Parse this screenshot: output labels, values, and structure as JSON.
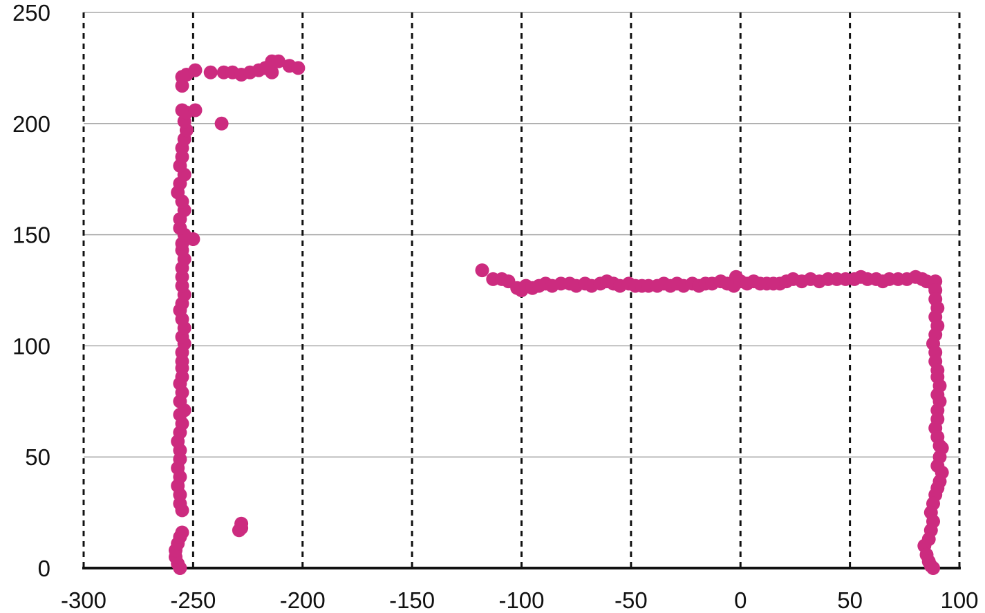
{
  "chart_data": {
    "type": "scatter",
    "title": "",
    "xlabel": "",
    "ylabel": "",
    "xlim": [
      -300,
      100
    ],
    "ylim": [
      0,
      250
    ],
    "x_ticks": [
      -300,
      -250,
      -200,
      -150,
      -100,
      -50,
      0,
      50,
      100
    ],
    "y_ticks": [
      0,
      50,
      100,
      150,
      200,
      250
    ],
    "x_tick_labels": [
      "-300",
      "-250",
      "-200",
      "-150",
      "-100",
      "-50",
      "0",
      "50",
      "100"
    ],
    "y_tick_labels": [
      "0",
      "50",
      "100",
      "150",
      "200",
      "250"
    ],
    "x_grid": "dashed vertical lines",
    "y_grid": "solid gray horizontal lines",
    "legend": "none",
    "marker_color": "#cc2b7f",
    "series": [
      {
        "points": [
          [
            -256,
            0
          ],
          [
            -257,
            2
          ],
          [
            -258,
            5
          ],
          [
            -258,
            8
          ],
          [
            -257,
            11
          ],
          [
            -256,
            14
          ],
          [
            -255,
            16
          ],
          [
            -255,
            26
          ],
          [
            -256,
            29
          ],
          [
            -256,
            33
          ],
          [
            -257,
            37
          ],
          [
            -256,
            41
          ],
          [
            -257,
            45
          ],
          [
            -256,
            49
          ],
          [
            -256,
            53
          ],
          [
            -257,
            57
          ],
          [
            -256,
            61
          ],
          [
            -255,
            65
          ],
          [
            -256,
            69
          ],
          [
            -254,
            71
          ],
          [
            -256,
            75
          ],
          [
            -255,
            79
          ],
          [
            -256,
            83
          ],
          [
            -255,
            86
          ],
          [
            -255,
            90
          ],
          [
            -255,
            93
          ],
          [
            -255,
            97
          ],
          [
            -254,
            101
          ],
          [
            -255,
            104
          ],
          [
            -254,
            108
          ],
          [
            -255,
            112
          ],
          [
            -256,
            116
          ],
          [
            -255,
            119
          ],
          [
            -254,
            123
          ],
          [
            -255,
            127
          ],
          [
            -255,
            131
          ],
          [
            -255,
            135
          ],
          [
            -254,
            139
          ],
          [
            -255,
            143
          ],
          [
            -255,
            146
          ],
          [
            -250,
            148
          ],
          [
            -254,
            150
          ],
          [
            -256,
            153
          ],
          [
            -256,
            157
          ],
          [
            -254,
            161
          ],
          [
            -255,
            165
          ],
          [
            -257,
            169
          ],
          [
            -256,
            173
          ],
          [
            -254,
            177
          ],
          [
            -256,
            181
          ],
          [
            -255,
            185
          ],
          [
            -255,
            189
          ],
          [
            -254,
            193
          ],
          [
            -253,
            197
          ],
          [
            -254,
            201
          ],
          [
            -255,
            206
          ],
          [
            -253,
            205
          ],
          [
            -249,
            206
          ],
          [
            -237,
            200
          ],
          [
            -255,
            217
          ],
          [
            -255,
            221
          ],
          [
            -253,
            222
          ],
          [
            -249,
            224
          ],
          [
            -242,
            223
          ],
          [
            -236,
            223
          ],
          [
            -232,
            223
          ],
          [
            -228,
            222
          ],
          [
            -224,
            223
          ],
          [
            -220,
            224
          ],
          [
            -217,
            225
          ],
          [
            -214,
            228
          ],
          [
            -214,
            223
          ],
          [
            -211,
            228
          ],
          [
            -206,
            226
          ],
          [
            -202,
            225
          ],
          [
            -229,
            17
          ],
          [
            -228,
            20
          ],
          [
            -228,
            18
          ],
          [
            -118,
            134
          ],
          [
            -113,
            130
          ],
          [
            -109,
            130
          ],
          [
            -106,
            129
          ],
          [
            -102,
            126
          ],
          [
            -100,
            125
          ],
          [
            -98,
            127
          ],
          [
            -95,
            126
          ],
          [
            -92,
            127
          ],
          [
            -89,
            128
          ],
          [
            -86,
            127
          ],
          [
            -82,
            128
          ],
          [
            -78,
            128
          ],
          [
            -75,
            127
          ],
          [
            -71,
            128
          ],
          [
            -68,
            127
          ],
          [
            -64,
            128
          ],
          [
            -61,
            129
          ],
          [
            -58,
            128
          ],
          [
            -55,
            127
          ],
          [
            -51,
            128
          ],
          [
            -48,
            127
          ],
          [
            -45,
            127
          ],
          [
            -42,
            127
          ],
          [
            -38,
            127
          ],
          [
            -35,
            128
          ],
          [
            -32,
            127
          ],
          [
            -29,
            128
          ],
          [
            -26,
            127
          ],
          [
            -22,
            128
          ],
          [
            -19,
            127
          ],
          [
            -16,
            128
          ],
          [
            -13,
            128
          ],
          [
            -9,
            129
          ],
          [
            -6,
            128
          ],
          [
            -3,
            127
          ],
          [
            -2,
            131
          ],
          [
            0,
            129
          ],
          [
            3,
            128
          ],
          [
            6,
            129
          ],
          [
            9,
            128
          ],
          [
            12,
            128
          ],
          [
            15,
            128
          ],
          [
            18,
            128
          ],
          [
            21,
            129
          ],
          [
            24,
            130
          ],
          [
            28,
            129
          ],
          [
            32,
            130
          ],
          [
            36,
            129
          ],
          [
            40,
            130
          ],
          [
            44,
            130
          ],
          [
            48,
            130
          ],
          [
            52,
            130
          ],
          [
            55,
            131
          ],
          [
            58,
            130
          ],
          [
            62,
            130
          ],
          [
            65,
            129
          ],
          [
            68,
            130
          ],
          [
            72,
            130
          ],
          [
            76,
            130
          ],
          [
            80,
            131
          ],
          [
            83,
            130
          ],
          [
            85,
            129
          ],
          [
            88,
            128
          ],
          [
            89,
            129
          ],
          [
            89,
            125
          ],
          [
            89,
            121
          ],
          [
            90,
            117
          ],
          [
            89,
            113
          ],
          [
            90,
            109
          ],
          [
            89,
            105
          ],
          [
            88,
            101
          ],
          [
            89,
            97
          ],
          [
            89,
            93
          ],
          [
            90,
            89
          ],
          [
            90,
            86
          ],
          [
            91,
            82
          ],
          [
            90,
            78
          ],
          [
            91,
            75
          ],
          [
            90,
            71
          ],
          [
            90,
            67
          ],
          [
            89,
            63
          ],
          [
            90,
            59
          ],
          [
            91,
            55
          ],
          [
            92,
            54
          ],
          [
            91,
            50
          ],
          [
            90,
            46
          ],
          [
            92,
            43
          ],
          [
            91,
            39
          ],
          [
            90,
            36
          ],
          [
            89,
            33
          ],
          [
            88,
            29
          ],
          [
            87,
            25
          ],
          [
            88,
            21
          ],
          [
            87,
            17
          ],
          [
            86,
            13
          ],
          [
            84,
            10
          ],
          [
            85,
            6
          ],
          [
            86,
            3
          ],
          [
            87,
            1
          ],
          [
            88,
            0
          ]
        ]
      }
    ]
  }
}
